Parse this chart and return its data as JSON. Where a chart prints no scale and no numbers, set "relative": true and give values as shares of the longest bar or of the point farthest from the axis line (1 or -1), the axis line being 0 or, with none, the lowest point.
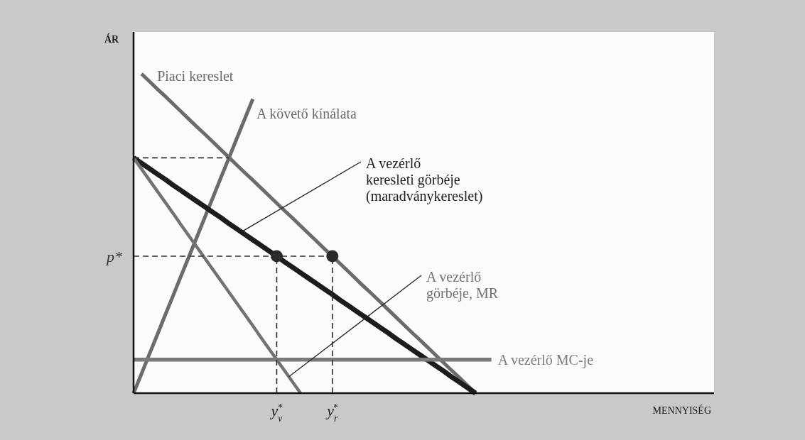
{
  "chart_data": {
    "type": "line",
    "relative": true,
    "xlabel": "MENNYISÉG",
    "ylabel": "ÁR",
    "categories": [
      null,
      null,
      null,
      null,
      null,
      null,
      null,
      null,
      null,
      null,
      null,
      null,
      null,
      null,
      null,
      null,
      null,
      null,
      "y$_{v}$$^{*}$",
      null,
      null,
      null,
      null,
      null,
      null,
      "y$_{r}$$^{*}$",
      null,
      null,
      null,
      null,
      null,
      null,
      null,
      null,
      null,
      null,
      null,
      null,
      null,
      null,
      null,
      null,
      null,
      null,
      null,
      null,
      null,
      null,
      null,
      null,
      null,
      null,
      null,
      null,
      null,
      null,
      null,
      null,
      null,
      null,
      null,
      null,
      null,
      null,
      null,
      null,
      null,
      null,
      null,
      null,
      null,
      null,
      null,
      null
    ],
    "series": [
      {
        "name": "Piaci kereslet",
        "color": "#6b6b6b",
        "values": [
          null,
          1,
          0.976,
          0.952,
          0.929,
          0.905,
          0.881,
          0.857,
          0.833,
          0.81,
          0.786,
          0.762,
          0.738,
          0.714,
          0.69,
          0.667,
          0.643,
          0.619,
          0.595,
          0.571,
          0.548,
          0.524,
          0.5,
          0.476,
          0.452,
          0.429,
          0.405,
          0.381,
          0.357,
          0.333,
          0.31,
          0.286,
          0.262,
          0.238,
          0.214,
          0.19,
          0.167,
          0.143,
          0.119,
          0.095,
          0.071,
          0.048,
          0.024,
          0,
          null,
          null,
          null,
          null,
          null,
          null,
          null,
          null,
          null,
          null,
          null,
          null,
          null,
          null,
          null,
          null,
          null,
          null,
          null,
          null,
          null,
          null,
          null,
          null,
          null,
          null,
          null,
          null,
          null,
          null
        ]
      },
      {
        "name": "A követő kínálata",
        "color": "#6b6b6b",
        "values": [
          0,
          0.061,
          0.123,
          0.184,
          0.246,
          0.307,
          0.369,
          0.43,
          0.491,
          0.553,
          0.614,
          0.676,
          0.737,
          0.799,
          0.86,
          0.921,
          null,
          null,
          null,
          null,
          null,
          null,
          null,
          null,
          null,
          null,
          null,
          null,
          null,
          null,
          null,
          null,
          null,
          null,
          null,
          null,
          null,
          null,
          null,
          null,
          null,
          null,
          null,
          null,
          null,
          null,
          null,
          null,
          null,
          null,
          null,
          null,
          null,
          null,
          null,
          null,
          null,
          null,
          null,
          null,
          null,
          null,
          null,
          null,
          null,
          null,
          null,
          null,
          null,
          null,
          null,
          null,
          null,
          null
        ]
      },
      {
        "name": "A vezérlő keresleti görbéje (maradványkereslet)",
        "color": "#1c1c1c",
        "values": [
          0.737,
          0.72,
          0.703,
          0.686,
          0.669,
          0.651,
          0.634,
          0.617,
          0.6,
          0.583,
          0.566,
          0.549,
          0.531,
          0.514,
          0.497,
          0.48,
          0.463,
          0.446,
          0.429,
          0.411,
          0.394,
          0.377,
          0.36,
          0.343,
          0.326,
          0.309,
          0.291,
          0.274,
          0.257,
          0.24,
          0.223,
          0.206,
          0.189,
          0.171,
          0.154,
          0.137,
          0.12,
          0.103,
          0.086,
          0.069,
          0.051,
          0.034,
          0.017,
          0,
          null,
          null,
          null,
          null,
          null,
          null,
          null,
          null,
          null,
          null,
          null,
          null,
          null,
          null,
          null,
          null,
          null,
          null,
          null,
          null,
          null,
          null,
          null,
          null,
          null,
          null,
          null,
          null,
          null,
          null
        ]
      },
      {
        "name": "A vezérlő görbéje, MR",
        "color": "#727272",
        "values": [
          0.737,
          0.702,
          0.667,
          0.632,
          0.597,
          0.562,
          0.526,
          0.491,
          0.456,
          0.421,
          0.386,
          0.351,
          0.316,
          0.281,
          0.246,
          0.211,
          0.175,
          0.14,
          0.105,
          0.07,
          0.035,
          0,
          null,
          null,
          null,
          null,
          null,
          null,
          null,
          null,
          null,
          null,
          null,
          null,
          null,
          null,
          null,
          null,
          null,
          null,
          null,
          null,
          null,
          null,
          null,
          null,
          null,
          null,
          null,
          null,
          null,
          null,
          null,
          null,
          null,
          null,
          null,
          null,
          null,
          null,
          null,
          null,
          null,
          null,
          null,
          null,
          null,
          null,
          null,
          null,
          null,
          null,
          null,
          null
        ]
      },
      {
        "name": "A vezérlő MC-je",
        "color": "#7a7a7a",
        "values": [
          0.105,
          0.105,
          0.105,
          0.105,
          0.105,
          0.105,
          0.105,
          0.105,
          0.105,
          0.105,
          0.105,
          0.105,
          0.105,
          0.105,
          0.105,
          0.105,
          0.105,
          0.105,
          0.105,
          0.105,
          0.105,
          0.105,
          0.105,
          0.105,
          0.105,
          0.105,
          0.105,
          0.105,
          0.105,
          0.105,
          0.105,
          0.105,
          0.105,
          0.105,
          0.105,
          0.105,
          0.105,
          0.105,
          0.105,
          0.105,
          0.105,
          0.105,
          0.105,
          0.105,
          0.105,
          0.105,
          null,
          null,
          null,
          null,
          null,
          null,
          null,
          null,
          null,
          null,
          null,
          null,
          null,
          null,
          null,
          null,
          null,
          null,
          null,
          null,
          null,
          null,
          null,
          null,
          null,
          null,
          null,
          null
        ]
      },
      {
        "color": "#333333",
        "line_style": "dashed",
        "values": [
          0.737,
          0.737,
          0.737,
          0.737,
          0.737,
          0.737,
          0.737,
          0.737,
          0.737,
          0.737,
          0.737,
          0.737,
          0.737,
          null,
          null,
          null,
          null,
          null,
          null,
          null,
          null,
          null,
          null,
          null,
          null,
          null,
          null,
          null,
          null,
          null,
          null,
          null,
          null,
          null,
          null,
          null,
          null,
          null,
          null,
          null,
          null,
          null,
          null,
          null,
          null,
          null,
          null,
          null,
          null,
          null,
          null,
          null,
          null,
          null,
          null,
          null,
          null,
          null,
          null,
          null,
          null,
          null,
          null,
          null,
          null,
          null,
          null,
          null,
          null,
          null,
          null,
          null,
          null,
          null
        ]
      },
      {
        "name": "p*",
        "color": "#333333",
        "line_style": "dashed",
        "values": [
          0.429,
          0.429,
          0.429,
          0.429,
          0.429,
          0.429,
          0.429,
          0.429,
          0.429,
          0.429,
          0.429,
          0.429,
          0.429,
          0.429,
          0.429,
          0.429,
          0.429,
          0.429,
          0.429,
          0.429,
          0.429,
          0.429,
          0.429,
          0.429,
          0.429,
          0.429,
          null,
          null,
          null,
          null,
          null,
          null,
          null,
          null,
          null,
          null,
          null,
          null,
          null,
          null,
          null,
          null,
          null,
          null,
          null,
          null,
          null,
          null,
          null,
          null,
          null,
          null,
          null,
          null,
          null,
          null,
          null,
          null,
          null,
          null,
          null,
          null,
          null,
          null,
          null,
          null,
          null,
          null,
          null,
          null,
          null,
          null,
          null,
          null
        ]
      },
      {
        "type": "lollipop",
        "marker": "circle",
        "line_style": "dashed",
        "color": "#2b2b2b",
        "values": [
          null,
          null,
          null,
          null,
          null,
          null,
          null,
          null,
          null,
          null,
          null,
          null,
          null,
          null,
          null,
          null,
          null,
          null,
          0.429,
          null,
          null,
          null,
          null,
          null,
          null,
          0.429,
          null,
          null,
          null,
          null,
          null,
          null,
          null,
          null,
          null,
          null,
          null,
          null,
          null,
          null,
          null,
          null,
          null,
          null,
          null,
          null,
          null,
          null,
          null,
          null,
          null,
          null,
          null,
          null,
          null,
          null,
          null,
          null,
          null,
          null,
          null,
          null,
          null,
          null,
          null,
          null,
          null,
          null,
          null,
          null,
          null,
          null,
          null,
          null
        ]
      }
    ]
  }
}
